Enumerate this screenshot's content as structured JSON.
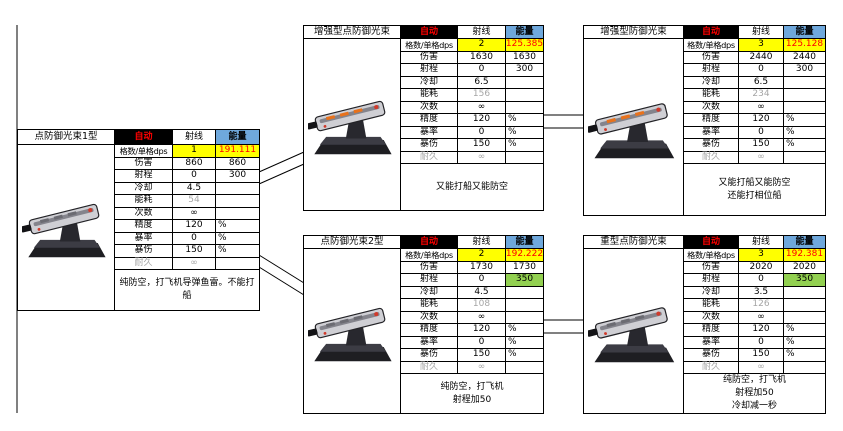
{
  "colors": {
    "highlight_yellow": "#FFFF00",
    "dps_value_red": "#FF0000",
    "header_auto_bg": "#000000",
    "header_auto_text": "#FF0000",
    "header_energy_blue": "#6FA8DC",
    "range_green": "#92D050",
    "muted_gray": "#A6A6A6",
    "turret_accent_orange": "#E8721C",
    "turret_dot_red": "#D03A2B"
  },
  "header_labels": {
    "auto": "自动",
    "ray": "射线",
    "energy": "能量"
  },
  "tables": [
    {
      "title": "点防御光束1型",
      "turret_accent": "red",
      "rows": [
        {
          "label": "格数/单格dps",
          "ray": "1",
          "energy": "191.111",
          "dps": true
        },
        {
          "label": "伤害",
          "ray": "860",
          "energy": "860"
        },
        {
          "label": "射程",
          "ray": "0",
          "energy": "300"
        },
        {
          "label": "冷却",
          "ray": "4.5",
          "energy": ""
        },
        {
          "label": "能耗",
          "ray": "54",
          "energy": "",
          "ray_muted": true
        },
        {
          "label": "次数",
          "ray": "∞",
          "energy": ""
        },
        {
          "label": "精度",
          "ray": "120",
          "energy": "%",
          "pct": true
        },
        {
          "label": "暴率",
          "ray": "0",
          "energy": "%",
          "pct": true
        },
        {
          "label": "暴伤",
          "ray": "150",
          "energy": "%",
          "pct": true
        },
        {
          "label": "耐久",
          "ray": "∞",
          "energy": "",
          "muted": true
        }
      ],
      "note_lines": [
        "纯防空，打飞机导弹鱼雷。不能打船"
      ]
    },
    {
      "title": "增强型点防御光束",
      "turret_accent": "orange",
      "rows": [
        {
          "label": "格数/单格dps",
          "ray": "2",
          "energy": "125.385",
          "dps": true
        },
        {
          "label": "伤害",
          "ray": "1630",
          "energy": "1630"
        },
        {
          "label": "射程",
          "ray": "0",
          "energy": "300"
        },
        {
          "label": "冷却",
          "ray": "6.5",
          "energy": ""
        },
        {
          "label": "能耗",
          "ray": "156",
          "energy": "",
          "ray_muted": true
        },
        {
          "label": "次数",
          "ray": "∞",
          "energy": ""
        },
        {
          "label": "精度",
          "ray": "120",
          "energy": "%",
          "pct": true
        },
        {
          "label": "暴率",
          "ray": "0",
          "energy": "%",
          "pct": true
        },
        {
          "label": "暴伤",
          "ray": "150",
          "energy": "%",
          "pct": true
        },
        {
          "label": "耐久",
          "ray": "∞",
          "energy": "",
          "muted": true
        }
      ],
      "note_lines": [
        "又能打船又能防空"
      ]
    },
    {
      "title": "增强型防御光束",
      "turret_accent": "orange",
      "rows": [
        {
          "label": "格数/单格dps",
          "ray": "3",
          "energy": "125.128",
          "dps": true
        },
        {
          "label": "伤害",
          "ray": "2440",
          "energy": "2440"
        },
        {
          "label": "射程",
          "ray": "0",
          "energy": "300"
        },
        {
          "label": "冷却",
          "ray": "6.5",
          "energy": ""
        },
        {
          "label": "能耗",
          "ray": "234",
          "energy": "",
          "ray_muted": true
        },
        {
          "label": "次数",
          "ray": "∞",
          "energy": ""
        },
        {
          "label": "精度",
          "ray": "120",
          "energy": "%",
          "pct": true
        },
        {
          "label": "暴率",
          "ray": "0",
          "energy": "%",
          "pct": true
        },
        {
          "label": "暴伤",
          "ray": "150",
          "energy": "%",
          "pct": true
        },
        {
          "label": "耐久",
          "ray": "∞",
          "energy": "",
          "muted": true
        }
      ],
      "note_lines": [
        "又能打船又能防空",
        "还能打相位船"
      ]
    },
    {
      "title": "点防御光束2型",
      "turret_accent": "red",
      "rows": [
        {
          "label": "格数/单格dps",
          "ray": "2",
          "energy": "192.222",
          "dps": true
        },
        {
          "label": "伤害",
          "ray": "1730",
          "energy": "1730"
        },
        {
          "label": "射程",
          "ray": "0",
          "energy": "350",
          "green": true
        },
        {
          "label": "冷却",
          "ray": "4.5",
          "energy": ""
        },
        {
          "label": "能耗",
          "ray": "108",
          "energy": "",
          "ray_muted": true
        },
        {
          "label": "次数",
          "ray": "∞",
          "energy": ""
        },
        {
          "label": "精度",
          "ray": "120",
          "energy": "%",
          "pct": true
        },
        {
          "label": "暴率",
          "ray": "0",
          "energy": "%",
          "pct": true
        },
        {
          "label": "暴伤",
          "ray": "150",
          "energy": "%",
          "pct": true
        },
        {
          "label": "耐久",
          "ray": "∞",
          "energy": "",
          "muted": true
        }
      ],
      "note_lines": [
        "纯防空，打飞机",
        "射程加50"
      ]
    },
    {
      "title": "重型点防御光束",
      "turret_accent": "red",
      "rows": [
        {
          "label": "格数/单格dps",
          "ray": "3",
          "energy": "192.381",
          "dps": true
        },
        {
          "label": "伤害",
          "ray": "2020",
          "energy": "2020"
        },
        {
          "label": "射程",
          "ray": "0",
          "energy": "350",
          "green": true
        },
        {
          "label": "冷却",
          "ray": "3.5",
          "energy": ""
        },
        {
          "label": "能耗",
          "ray": "126",
          "energy": "",
          "ray_muted": true
        },
        {
          "label": "次数",
          "ray": "∞",
          "energy": ""
        },
        {
          "label": "精度",
          "ray": "120",
          "energy": "%",
          "pct": true
        },
        {
          "label": "暴率",
          "ray": "0",
          "energy": "%",
          "pct": true
        },
        {
          "label": "暴伤",
          "ray": "150",
          "energy": "%",
          "pct": true
        },
        {
          "label": "耐久",
          "ray": "∞",
          "energy": "",
          "muted": true
        }
      ],
      "note_lines": [
        "纯防空，打飞机",
        "射程加50",
        "冷却减一秒"
      ]
    }
  ]
}
